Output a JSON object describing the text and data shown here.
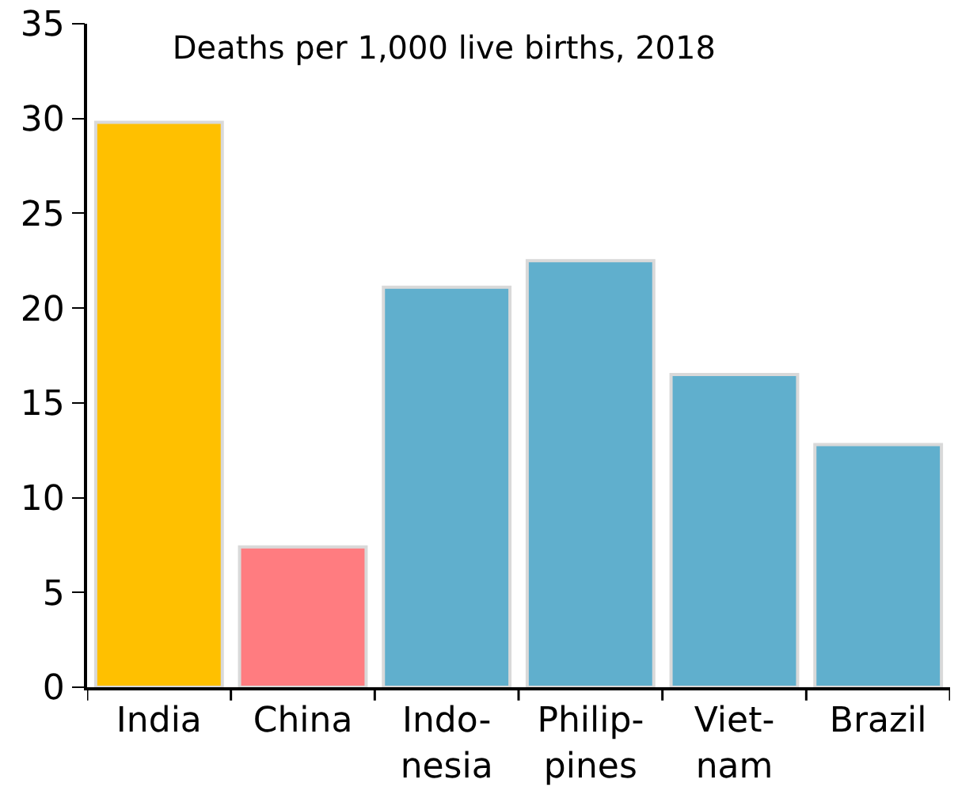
{
  "chart_data": {
    "type": "bar",
    "title": "Deaths per 1,000 live births, 2018",
    "categories": [
      "India",
      "China",
      "Indo-\nnesia",
      "Philip-\npines",
      "Viet-\nnam",
      "Brazil"
    ],
    "values": [
      29.8,
      7.4,
      21.1,
      22.5,
      16.5,
      12.8
    ],
    "colors": [
      "#ffc000",
      "#ff7c80",
      "#60afcd",
      "#60afcd",
      "#60afcd",
      "#60afcd"
    ],
    "ylim": [
      0,
      35
    ],
    "yticks": [
      0,
      5,
      10,
      15,
      20,
      25,
      30,
      35
    ]
  }
}
